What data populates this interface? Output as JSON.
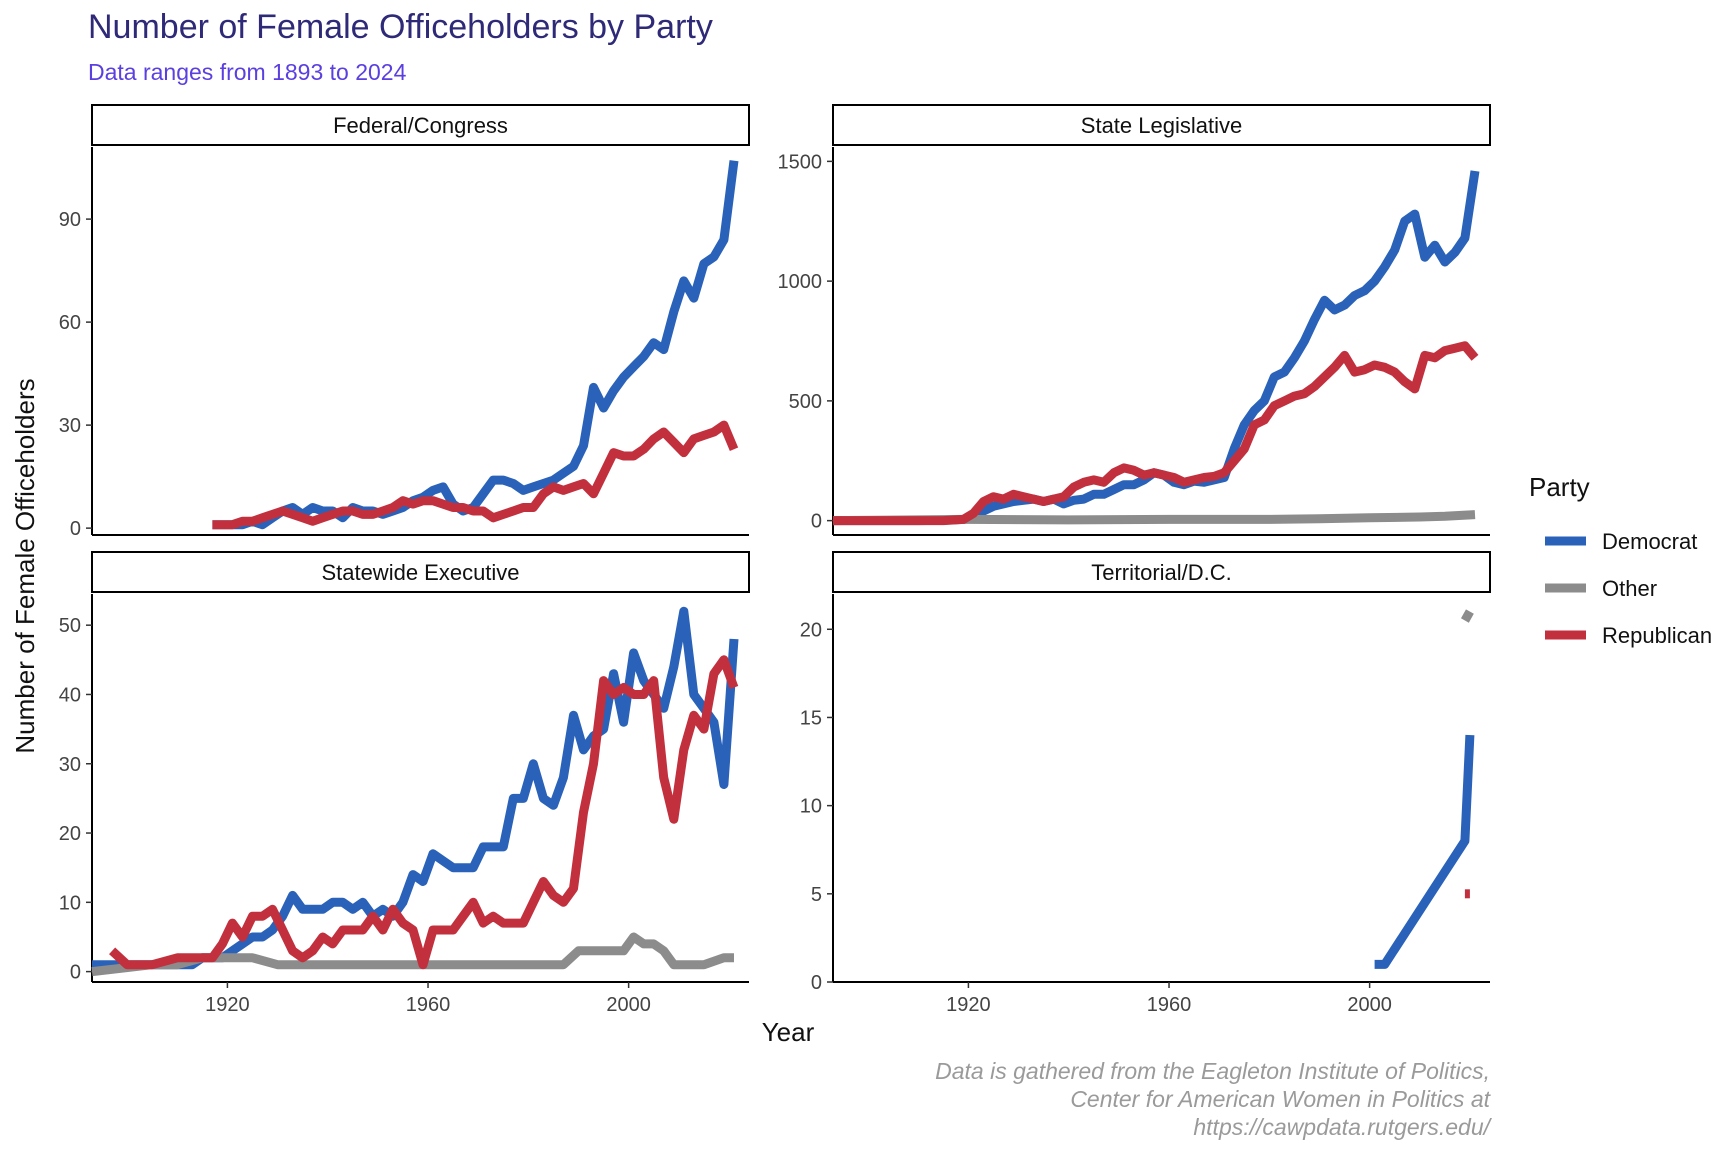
{
  "title": "Number of Female Officeholders by Party",
  "subtitle": "Data ranges from 1893 to 2024",
  "caption": [
    "Data is gathered from the Eagleton Institute of Politics,",
    "Center for American Women in Politics at",
    "https://cawpdata.rutgers.edu/"
  ],
  "chart_data": {
    "type": "line",
    "xlabel": "Year",
    "ylabel": "Number of Female Officeholders",
    "xlim": [
      1893,
      2024
    ],
    "x_ticks": [
      1920,
      1960,
      2000
    ],
    "legend": {
      "title": "Party",
      "position": "right",
      "entries": [
        {
          "name": "Democrat",
          "color": "#2962b8"
        },
        {
          "name": "Other",
          "color": "#8c8c8c"
        },
        {
          "name": "Republican",
          "color": "#c2303e"
        }
      ]
    },
    "facets": [
      {
        "name": "Federal/Congress",
        "ylim": [
          -2,
          111
        ],
        "y_ticks": [
          0,
          30,
          60,
          90
        ],
        "series": [
          {
            "name": "Democrat",
            "x": [
              1917,
              1921,
              1923,
              1925,
              1927,
              1929,
              1931,
              1933,
              1935,
              1937,
              1939,
              1941,
              1943,
              1945,
              1947,
              1949,
              1951,
              1953,
              1955,
              1957,
              1959,
              1961,
              1963,
              1965,
              1967,
              1969,
              1971,
              1973,
              1975,
              1977,
              1979,
              1981,
              1983,
              1985,
              1987,
              1989,
              1991,
              1993,
              1995,
              1997,
              1999,
              2001,
              2003,
              2005,
              2007,
              2009,
              2011,
              2013,
              2015,
              2017,
              2019,
              2021
            ],
            "y": [
              1,
              1,
              1,
              2,
              1,
              3,
              5,
              6,
              4,
              6,
              5,
              5,
              3,
              6,
              5,
              5,
              4,
              5,
              6,
              8,
              9,
              11,
              12,
              7,
              5,
              6,
              10,
              14,
              14,
              13,
              11,
              12,
              13,
              14,
              16,
              18,
              24,
              41,
              35,
              40,
              44,
              47,
              50,
              54,
              52,
              63,
              72,
              67,
              77,
              79,
              84,
              107
            ]
          },
          {
            "name": "Other",
            "x": [],
            "y": []
          },
          {
            "name": "Republican",
            "x": [
              1917,
              1921,
              1923,
              1925,
              1927,
              1929,
              1931,
              1933,
              1935,
              1937,
              1939,
              1941,
              1943,
              1945,
              1947,
              1949,
              1951,
              1953,
              1955,
              1957,
              1959,
              1961,
              1963,
              1965,
              1967,
              1969,
              1971,
              1973,
              1975,
              1977,
              1979,
              1981,
              1983,
              1985,
              1987,
              1989,
              1991,
              1993,
              1995,
              1997,
              1999,
              2001,
              2003,
              2005,
              2007,
              2009,
              2011,
              2013,
              2015,
              2017,
              2019,
              2021
            ],
            "y": [
              1,
              1,
              2,
              2,
              3,
              4,
              5,
              4,
              3,
              2,
              3,
              4,
              5,
              5,
              4,
              4,
              5,
              6,
              8,
              7,
              8,
              8,
              7,
              6,
              6,
              5,
              5,
              3,
              4,
              5,
              6,
              6,
              10,
              12,
              11,
              12,
              13,
              10,
              16,
              22,
              21,
              21,
              23,
              26,
              28,
              25,
              22,
              26,
              27,
              28,
              30,
              23
            ]
          }
        ]
      },
      {
        "name": "State Legislative",
        "ylim": [
          -60,
          1560
        ],
        "y_ticks": [
          0,
          500,
          1000,
          1500
        ],
        "series": [
          {
            "name": "Democrat",
            "x": [
              1893,
              1900,
              1910,
              1915,
              1919,
              1921,
              1923,
              1925,
              1927,
              1929,
              1931,
              1933,
              1935,
              1937,
              1939,
              1941,
              1943,
              1945,
              1947,
              1949,
              1951,
              1953,
              1955,
              1957,
              1959,
              1961,
              1963,
              1965,
              1967,
              1969,
              1971,
              1973,
              1975,
              1977,
              1979,
              1981,
              1983,
              1985,
              1987,
              1989,
              1991,
              1993,
              1995,
              1997,
              1999,
              2001,
              2003,
              2005,
              2007,
              2009,
              2011,
              2013,
              2015,
              2017,
              2019,
              2021
            ],
            "y": [
              0,
              0,
              0,
              2,
              5,
              20,
              40,
              60,
              70,
              80,
              85,
              90,
              80,
              90,
              70,
              85,
              90,
              110,
              110,
              130,
              150,
              150,
              170,
              200,
              190,
              160,
              150,
              165,
              160,
              170,
              180,
              300,
              400,
              460,
              500,
              600,
              620,
              680,
              750,
              840,
              920,
              880,
              900,
              940,
              960,
              1000,
              1060,
              1130,
              1250,
              1280,
              1100,
              1150,
              1080,
              1120,
              1180,
              1460
            ]
          },
          {
            "name": "Other",
            "x": [
              1893,
              1920,
              1940,
              1960,
              1980,
              1990,
              2000,
              2010,
              2015,
              2021
            ],
            "y": [
              0,
              5,
              3,
              5,
              5,
              8,
              12,
              15,
              18,
              25
            ]
          },
          {
            "name": "Republican",
            "x": [
              1893,
              1900,
              1910,
              1915,
              1919,
              1921,
              1923,
              1925,
              1927,
              1929,
              1931,
              1933,
              1935,
              1937,
              1939,
              1941,
              1943,
              1945,
              1947,
              1949,
              1951,
              1953,
              1955,
              1957,
              1959,
              1961,
              1963,
              1965,
              1967,
              1969,
              1971,
              1973,
              1975,
              1977,
              1979,
              1981,
              1983,
              1985,
              1987,
              1989,
              1991,
              1993,
              1995,
              1997,
              1999,
              2001,
              2003,
              2005,
              2007,
              2009,
              2011,
              2013,
              2015,
              2017,
              2019,
              2021
            ],
            "y": [
              0,
              0,
              0,
              0,
              5,
              30,
              80,
              100,
              90,
              110,
              100,
              90,
              80,
              90,
              100,
              140,
              160,
              170,
              160,
              200,
              220,
              210,
              190,
              200,
              190,
              180,
              160,
              170,
              180,
              185,
              200,
              250,
              300,
              400,
              420,
              480,
              500,
              520,
              530,
              560,
              600,
              640,
              690,
              620,
              630,
              650,
              640,
              620,
              580,
              550,
              690,
              680,
              710,
              720,
              730,
              680
            ]
          }
        ]
      },
      {
        "name": "Statewide Executive",
        "ylim": [
          -1.5,
          54.5
        ],
        "y_ticks": [
          0,
          10,
          20,
          30,
          40,
          50
        ],
        "series": [
          {
            "name": "Democrat",
            "x": [
              1893,
              1897,
              1900,
              1905,
              1910,
              1913,
              1915,
              1917,
              1919,
              1921,
              1923,
              1925,
              1927,
              1929,
              1931,
              1933,
              1935,
              1937,
              1939,
              1941,
              1943,
              1945,
              1947,
              1949,
              1951,
              1953,
              1955,
              1957,
              1959,
              1961,
              1963,
              1965,
              1967,
              1969,
              1971,
              1973,
              1975,
              1977,
              1979,
              1981,
              1983,
              1985,
              1987,
              1989,
              1991,
              1993,
              1995,
              1997,
              1999,
              2001,
              2003,
              2005,
              2007,
              2009,
              2011,
              2013,
              2015,
              2017,
              2019,
              2021
            ],
            "y": [
              1,
              1,
              1,
              1,
              1,
              1,
              2,
              2,
              2,
              3,
              4,
              5,
              5,
              6,
              8,
              11,
              9,
              9,
              9,
              10,
              10,
              9,
              10,
              8,
              9,
              8,
              10,
              14,
              13,
              17,
              16,
              15,
              15,
              15,
              18,
              18,
              18,
              25,
              25,
              30,
              25,
              24,
              28,
              37,
              32,
              34,
              35,
              43,
              36,
              46,
              42,
              40,
              38,
              44,
              52,
              40,
              38,
              36,
              27,
              48
            ]
          },
          {
            "name": "Other",
            "x": [
              1893,
              1905,
              1910,
              1915,
              1920,
              1925,
              1930,
              1940,
              1960,
              1980,
              1987,
              1990,
              1995,
              1999,
              2001,
              2003,
              2005,
              2007,
              2009,
              2012,
              2015,
              2019,
              2021
            ],
            "y": [
              0,
              1,
              1,
              2,
              2,
              2,
              1,
              1,
              1,
              1,
              1,
              3,
              3,
              3,
              5,
              4,
              4,
              3,
              1,
              1,
              1,
              2,
              2
            ]
          },
          {
            "name": "Republican",
            "x": [
              1897,
              1900,
              1905,
              1910,
              1913,
              1915,
              1917,
              1919,
              1921,
              1923,
              1925,
              1927,
              1929,
              1931,
              1933,
              1935,
              1937,
              1939,
              1941,
              1943,
              1945,
              1947,
              1949,
              1951,
              1953,
              1955,
              1957,
              1959,
              1961,
              1963,
              1965,
              1967,
              1969,
              1971,
              1973,
              1975,
              1977,
              1979,
              1981,
              1983,
              1985,
              1987,
              1989,
              1991,
              1993,
              1995,
              1997,
              1999,
              2001,
              2003,
              2005,
              2007,
              2009,
              2011,
              2013,
              2015,
              2017,
              2019,
              2021
            ],
            "y": [
              3,
              1,
              1,
              2,
              2,
              2,
              2,
              4,
              7,
              5,
              8,
              8,
              9,
              6,
              3,
              2,
              3,
              5,
              4,
              6,
              6,
              6,
              8,
              6,
              9,
              7,
              6,
              1,
              6,
              6,
              6,
              8,
              10,
              7,
              8,
              7,
              7,
              7,
              10,
              13,
              11,
              10,
              12,
              23,
              30,
              42,
              40,
              41,
              40,
              40,
              42,
              28,
              22,
              32,
              37,
              35,
              43,
              45,
              41
            ]
          }
        ]
      },
      {
        "name": "Territorial/D.C.",
        "ylim": [
          0,
          22
        ],
        "y_ticks": [
          0,
          5,
          10,
          15,
          20
        ],
        "series": [
          {
            "name": "Democrat",
            "x": [
              2001,
              2003,
              2019,
              2020
            ],
            "y": [
              1,
              1,
              8,
              14
            ]
          },
          {
            "name": "Other",
            "x": [
              2019,
              2020
            ],
            "y": [
              20.5,
              21
            ]
          },
          {
            "name": "Republican",
            "x": [
              2019,
              2020
            ],
            "y": [
              5,
              5
            ]
          }
        ]
      }
    ]
  }
}
